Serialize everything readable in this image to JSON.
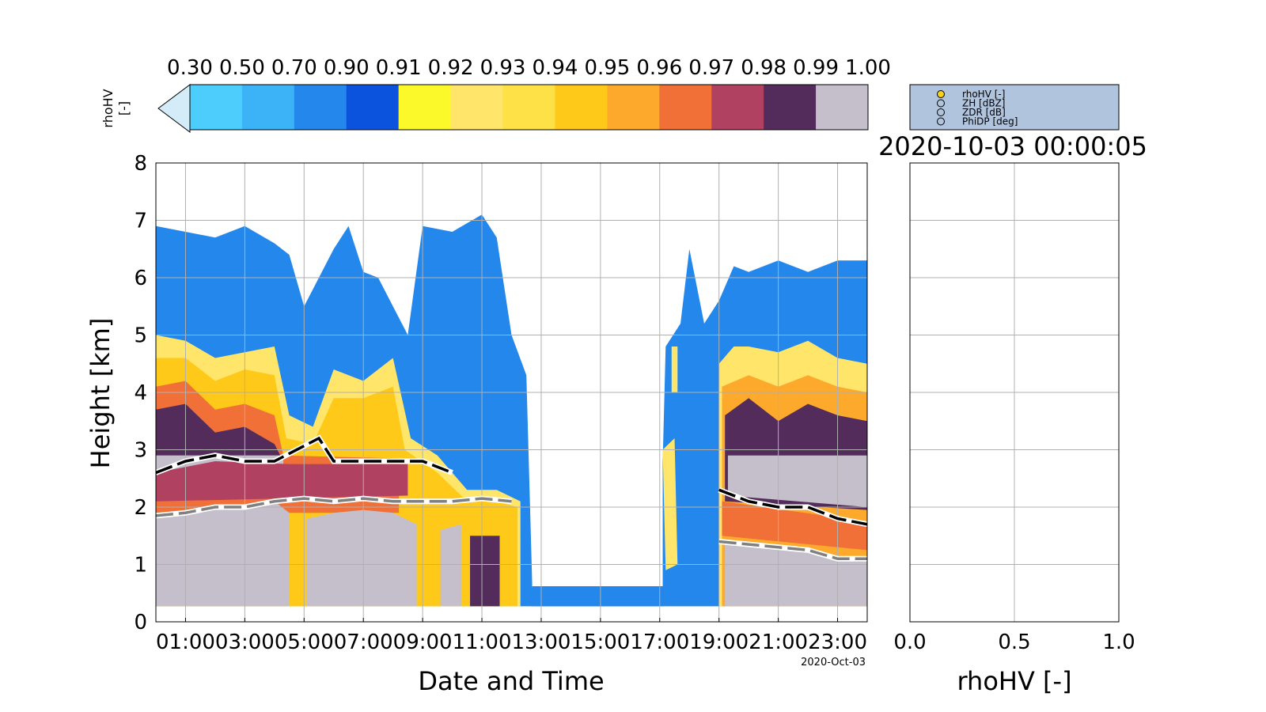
{
  "colorbar": {
    "label": "rhoHV\n[-]",
    "label_lines": [
      "rhoHV",
      "[-]"
    ],
    "ticks": [
      "0.30",
      "0.50",
      "0.70",
      "0.90",
      "0.91",
      "0.92",
      "0.93",
      "0.94",
      "0.95",
      "0.96",
      "0.97",
      "0.98",
      "0.99",
      "1.00"
    ],
    "under_color": "#d3ecf7",
    "colors": [
      "#4dcdfb",
      "#3bb3f6",
      "#2387ec",
      "#0b52dc",
      "#fbf929",
      "#ffe66a",
      "#fee047",
      "#fec918",
      "#fdaa2c",
      "#f07038",
      "#b14160",
      "#532c5b",
      "#c5bfcb"
    ]
  },
  "legend": {
    "items": [
      {
        "label": "rhoHV [-]",
        "active": true
      },
      {
        "label": "ZH [dBZ]",
        "active": false
      },
      {
        "label": "ZDR [dB]",
        "active": false
      },
      {
        "label": "PhiDP [deg]",
        "active": false
      }
    ],
    "background": "#b0c4de",
    "active_color": "#f8d119"
  },
  "profile_title": "2020-10-03 00:00:05",
  "chart_data": [
    {
      "type": "heatmap",
      "variable": "rhoHV",
      "xlabel": "Date and Time",
      "ylabel": "Height [km]",
      "x_ticks": [
        "01:00",
        "03:00",
        "05:00",
        "07:00",
        "09:00",
        "11:00",
        "13:00",
        "15:00",
        "17:00",
        "19:00",
        "21:00",
        "23:00"
      ],
      "x_tick_hours": [
        1,
        3,
        5,
        7,
        9,
        11,
        13,
        15,
        17,
        19,
        21,
        23
      ],
      "x_date_label": "2020-Oct-03",
      "xlim_hours": [
        0,
        24
      ],
      "y_ticks": [
        "0",
        "1",
        "2",
        "3",
        "4",
        "5",
        "6",
        "7",
        "8"
      ],
      "ylim": [
        0,
        8
      ],
      "grid": true,
      "cloud_top_km": [
        [
          0,
          6.9
        ],
        [
          1,
          6.8
        ],
        [
          2,
          6.7
        ],
        [
          3,
          6.9
        ],
        [
          4,
          6.6
        ],
        [
          4.5,
          6.4
        ],
        [
          5,
          5.5
        ],
        [
          5.5,
          6.0
        ],
        [
          6,
          6.5
        ],
        [
          6.5,
          6.9
        ],
        [
          7,
          6.1
        ],
        [
          7.5,
          6.0
        ],
        [
          8,
          5.5
        ],
        [
          8.5,
          5.0
        ],
        [
          9,
          6.9
        ],
        [
          10,
          6.8
        ],
        [
          11,
          7.1
        ],
        [
          11.5,
          6.7
        ],
        [
          12,
          5.0
        ],
        [
          12.5,
          4.3
        ],
        [
          12.7,
          0.6
        ],
        [
          13,
          0.6
        ],
        [
          14,
          0.6
        ],
        [
          15,
          0.6
        ],
        [
          16,
          0.6
        ],
        [
          17,
          0.8
        ],
        [
          17.2,
          4.8
        ],
        [
          17.7,
          5.2
        ],
        [
          18,
          6.5
        ],
        [
          18.5,
          5.2
        ],
        [
          19,
          5.6
        ],
        [
          19.5,
          6.2
        ],
        [
          20,
          6.1
        ],
        [
          21,
          6.3
        ],
        [
          22,
          6.1
        ],
        [
          23,
          6.3
        ],
        [
          24,
          6.3
        ]
      ],
      "melting_layer_top_km": [
        [
          0,
          2.6
        ],
        [
          1,
          2.8
        ],
        [
          2,
          2.9
        ],
        [
          3,
          2.8
        ],
        [
          4,
          2.8
        ],
        [
          5.5,
          3.2
        ],
        [
          6,
          2.8
        ],
        [
          7,
          2.8
        ],
        [
          8,
          2.8
        ],
        [
          9,
          2.8
        ],
        [
          10,
          2.6
        ],
        [
          19,
          2.3
        ],
        [
          20,
          2.1
        ],
        [
          21,
          2.0
        ],
        [
          22,
          2.0
        ],
        [
          23,
          1.8
        ],
        [
          24,
          1.7
        ]
      ],
      "melting_layer_bottom_km": [
        [
          0,
          1.85
        ],
        [
          1,
          1.9
        ],
        [
          2,
          2.0
        ],
        [
          3,
          2.0
        ],
        [
          4,
          2.1
        ],
        [
          5,
          2.15
        ],
        [
          6,
          2.1
        ],
        [
          7,
          2.15
        ],
        [
          8,
          2.1
        ],
        [
          9,
          2.1
        ],
        [
          10,
          2.1
        ],
        [
          11,
          2.15
        ],
        [
          12,
          2.1
        ],
        [
          19,
          1.4
        ],
        [
          20,
          1.35
        ],
        [
          21,
          1.3
        ],
        [
          22,
          1.25
        ],
        [
          23,
          1.1
        ],
        [
          24,
          1.1
        ]
      ]
    },
    {
      "type": "line",
      "variable": "rhoHV profile",
      "xlabel": "rhoHV [-]",
      "ylabel": "",
      "x_ticks": [
        "0.0",
        "0.5",
        "1.0"
      ],
      "xlim": [
        0.0,
        1.0
      ],
      "ylim": [
        0,
        8
      ],
      "grid": true,
      "series": []
    }
  ]
}
